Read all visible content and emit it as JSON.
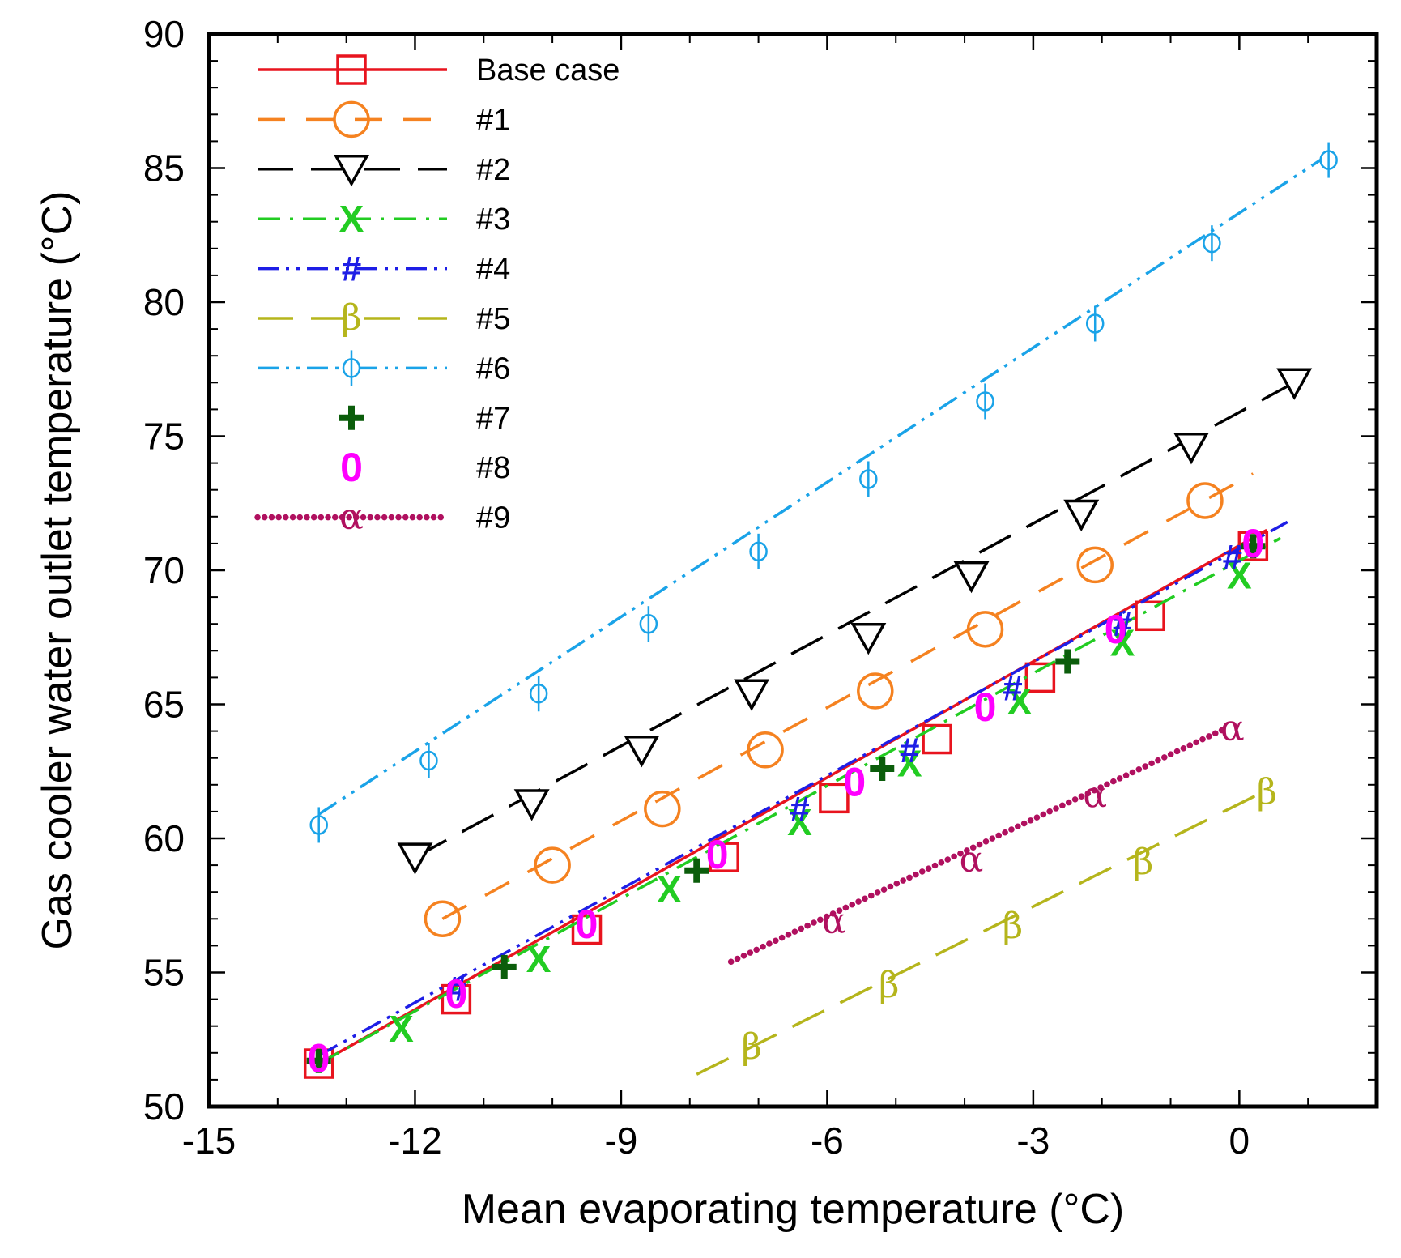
{
  "chart_data": {
    "type": "line",
    "xlabel": "Mean evaporating temperature  (°C)",
    "ylabel": "Gas cooler water outlet temperature (°C)",
    "xlim": [
      -15,
      2
    ],
    "ylim": [
      50,
      90
    ],
    "xticks": [
      -15,
      -12,
      -9,
      -6,
      -3,
      0
    ],
    "yticks": [
      50,
      55,
      60,
      65,
      70,
      75,
      80,
      85,
      90
    ],
    "x_minor_step": 1,
    "y_minor_step": 1,
    "legend_position": "top-left",
    "series": [
      {
        "name": "Base case",
        "color": "#e8141e",
        "dash": "solid",
        "marker": "square",
        "line": {
          "x": [
            -13.4,
            0.4
          ],
          "y": [
            51.6,
            71.5
          ]
        },
        "points": [
          {
            "x": -13.4,
            "y": 51.6
          },
          {
            "x": -11.4,
            "y": 54.0
          },
          {
            "x": -9.5,
            "y": 56.6
          },
          {
            "x": -7.5,
            "y": 59.3
          },
          {
            "x": -5.9,
            "y": 61.5
          },
          {
            "x": -4.4,
            "y": 63.7
          },
          {
            "x": -2.9,
            "y": 66.0
          },
          {
            "x": -1.3,
            "y": 68.3
          },
          {
            "x": 0.2,
            "y": 70.9
          }
        ]
      },
      {
        "name": "#1",
        "color": "#f58220",
        "dash": "dash",
        "marker": "circle",
        "line": {
          "x": [
            -11.6,
            0.2
          ],
          "y": [
            57.0,
            73.6
          ]
        },
        "points": [
          {
            "x": -11.6,
            "y": 57.0
          },
          {
            "x": -10.0,
            "y": 59.0
          },
          {
            "x": -8.4,
            "y": 61.1
          },
          {
            "x": -6.9,
            "y": 63.3
          },
          {
            "x": -5.3,
            "y": 65.5
          },
          {
            "x": -3.7,
            "y": 67.8
          },
          {
            "x": -2.1,
            "y": 70.2
          },
          {
            "x": -0.5,
            "y": 72.6
          }
        ]
      },
      {
        "name": "#2",
        "color": "#000000",
        "dash": "longdash",
        "marker": "triangle-down",
        "line": {
          "x": [
            -12.0,
            0.8
          ],
          "y": [
            59.3,
            77.0
          ]
        },
        "points": [
          {
            "x": -12.0,
            "y": 59.3
          },
          {
            "x": -10.3,
            "y": 61.3
          },
          {
            "x": -8.7,
            "y": 63.3
          },
          {
            "x": -7.1,
            "y": 65.4
          },
          {
            "x": -5.4,
            "y": 67.5
          },
          {
            "x": -3.9,
            "y": 69.8
          },
          {
            "x": -2.3,
            "y": 72.1
          },
          {
            "x": -0.7,
            "y": 74.6
          },
          {
            "x": 0.8,
            "y": 77.0
          }
        ]
      },
      {
        "name": "#3",
        "color": "#22cc22",
        "dash": "dashdot",
        "marker": "X",
        "line": {
          "x": [
            -13.4,
            0.6
          ],
          "y": [
            51.6,
            71.2
          ]
        },
        "points": [
          {
            "x": -12.2,
            "y": 52.9
          },
          {
            "x": -10.2,
            "y": 55.5
          },
          {
            "x": -8.3,
            "y": 58.1
          },
          {
            "x": -6.4,
            "y": 60.6
          },
          {
            "x": -4.8,
            "y": 62.8
          },
          {
            "x": -3.2,
            "y": 65.1
          },
          {
            "x": -1.7,
            "y": 67.3
          },
          {
            "x": 0.0,
            "y": 69.8
          }
        ]
      },
      {
        "name": "#4",
        "color": "#1e1ee6",
        "dash": "dashdotdot",
        "marker": "#",
        "line": {
          "x": [
            -13.4,
            0.7
          ],
          "y": [
            51.9,
            71.8
          ]
        },
        "points": [
          {
            "x": -11.4,
            "y": 54.4
          },
          {
            "x": -6.4,
            "y": 61.1
          },
          {
            "x": -4.8,
            "y": 63.3
          },
          {
            "x": -3.3,
            "y": 65.6
          },
          {
            "x": -1.7,
            "y": 68.0
          },
          {
            "x": -0.1,
            "y": 70.5
          }
        ]
      },
      {
        "name": "#5",
        "color": "#b5b51c",
        "dash": "longdash",
        "marker": "β",
        "line": {
          "x": [
            -7.9,
            0.4
          ],
          "y": [
            51.2,
            61.8
          ]
        },
        "points": [
          {
            "x": -7.1,
            "y": 52.2
          },
          {
            "x": -5.1,
            "y": 54.5
          },
          {
            "x": -3.3,
            "y": 56.7
          },
          {
            "x": -1.4,
            "y": 59.1
          },
          {
            "x": 0.4,
            "y": 61.7
          }
        ]
      },
      {
        "name": "#6",
        "color": "#1aa3e8",
        "dash": "dashdotdot",
        "marker": "ϕ",
        "line": {
          "x": [
            -13.4,
            1.3
          ],
          "y": [
            60.9,
            85.5
          ]
        },
        "points": [
          {
            "x": -13.4,
            "y": 60.5
          },
          {
            "x": -11.8,
            "y": 62.9
          },
          {
            "x": -10.2,
            "y": 65.4
          },
          {
            "x": -8.6,
            "y": 68.0
          },
          {
            "x": -7.0,
            "y": 70.7
          },
          {
            "x": -5.4,
            "y": 73.4
          },
          {
            "x": -3.7,
            "y": 76.3
          },
          {
            "x": -2.1,
            "y": 79.2
          },
          {
            "x": -0.4,
            "y": 82.2
          },
          {
            "x": 1.3,
            "y": 85.3
          }
        ]
      },
      {
        "name": "#7",
        "color": "#0b5d0b",
        "dash": "none",
        "marker": "plus",
        "points": [
          {
            "x": -13.4,
            "y": 51.7
          },
          {
            "x": -10.7,
            "y": 55.2
          },
          {
            "x": -7.9,
            "y": 58.8
          },
          {
            "x": -5.2,
            "y": 62.6
          },
          {
            "x": -2.5,
            "y": 66.6
          },
          {
            "x": 0.2,
            "y": 70.9
          }
        ]
      },
      {
        "name": "#8",
        "color": "#ff00ff",
        "dash": "none",
        "marker": "0",
        "points": [
          {
            "x": -13.4,
            "y": 51.8
          },
          {
            "x": -11.4,
            "y": 54.2
          },
          {
            "x": -9.5,
            "y": 56.8
          },
          {
            "x": -7.6,
            "y": 59.4
          },
          {
            "x": -5.6,
            "y": 62.1
          },
          {
            "x": -3.7,
            "y": 64.9
          },
          {
            "x": -1.8,
            "y": 67.8
          },
          {
            "x": 0.2,
            "y": 71.0
          }
        ]
      },
      {
        "name": "#9",
        "color": "#b0105f",
        "dash": "dotted",
        "marker": "α",
        "line": {
          "x": [
            -7.4,
            -0.2
          ],
          "y": [
            55.4,
            64.1
          ]
        },
        "points": [
          {
            "x": -5.9,
            "y": 56.9
          },
          {
            "x": -3.9,
            "y": 59.2
          },
          {
            "x": -2.1,
            "y": 61.6
          },
          {
            "x": -0.1,
            "y": 64.1
          }
        ]
      }
    ]
  }
}
